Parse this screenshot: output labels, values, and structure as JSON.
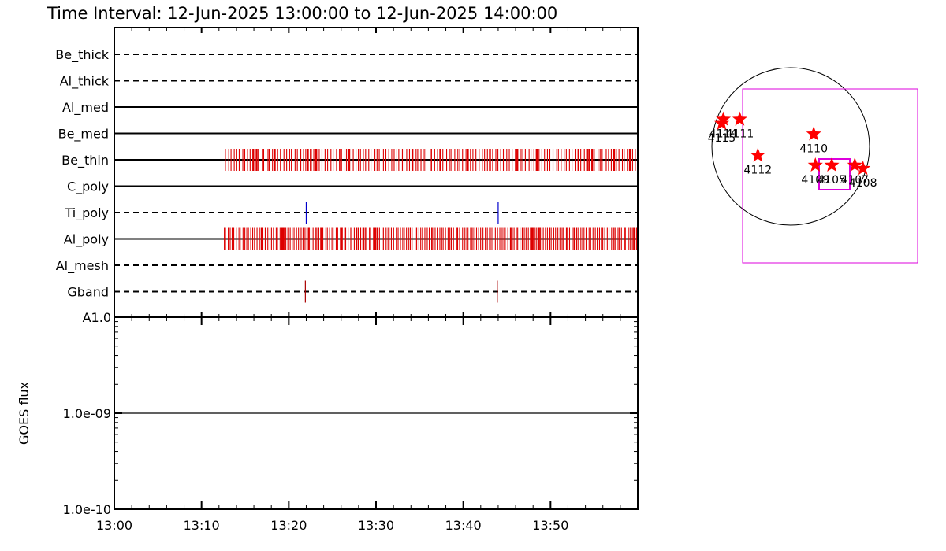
{
  "title": "Time Interval: 12-Jun-2025 13:00:00 to 12-Jun-2025 14:00:00",
  "chart_data": [
    {
      "type": "timeline",
      "x_tick_labels": [
        "13:00",
        "13:10",
        "13:20",
        "13:30",
        "13:40",
        "13:50"
      ],
      "x_ticks_minutes": [
        0,
        10,
        20,
        30,
        40,
        50
      ],
      "x_range_minutes": [
        0,
        60
      ],
      "rows": [
        {
          "name": "Be_thick",
          "style": "dashed",
          "events": []
        },
        {
          "name": "Al_thick",
          "style": "dashed",
          "events": []
        },
        {
          "name": "Al_med",
          "style": "solid",
          "events": []
        },
        {
          "name": "Be_med",
          "style": "solid",
          "events": []
        },
        {
          "name": "Be_thin",
          "style": "solid",
          "events": [],
          "dense_range": [
            12.7,
            60
          ],
          "dense_count": 150,
          "color": "#dd0000"
        },
        {
          "name": "C_poly",
          "style": "solid",
          "events": []
        },
        {
          "name": "Ti_poly",
          "style": "dashed",
          "events": [
            22.0,
            44.0
          ],
          "color": "#0000cc"
        },
        {
          "name": "Al_poly",
          "style": "solid",
          "events": [],
          "dense_range": [
            12.5,
            60
          ],
          "dense_count": 200,
          "color": "#dd0000"
        },
        {
          "name": "Al_mesh",
          "style": "dashed",
          "events": []
        },
        {
          "name": "Gband",
          "style": "dashed",
          "events": [
            21.9,
            43.9
          ],
          "color": "#aa0000"
        }
      ]
    },
    {
      "type": "line",
      "ylabel": "GOES flux",
      "yscale": "log",
      "y_tick_labels": [
        "1.0e-10",
        "1.0e-09",
        "A1.0"
      ],
      "y_tick_values": [
        1e-10,
        1e-09,
        1e-08
      ],
      "ylim": [
        1e-10,
        1e-08
      ],
      "series": [
        {
          "x": [
            0,
            60
          ],
          "y": [
            1e-09,
            1e-09
          ],
          "color": "#000000"
        }
      ]
    },
    {
      "type": "scatter",
      "title": "",
      "points": [
        {
          "label": "4114",
          "x": -820,
          "y": 330
        },
        {
          "label": "4115",
          "x": -840,
          "y": 280
        },
        {
          "label": "4111",
          "x": -620,
          "y": 330
        },
        {
          "label": "4112",
          "x": -400,
          "y": -110
        },
        {
          "label": "4110",
          "x": 280,
          "y": 150
        },
        {
          "label": "4109",
          "x": 300,
          "y": -230
        },
        {
          "label": "4105",
          "x": 500,
          "y": -230
        },
        {
          "label": "4107",
          "x": 780,
          "y": -230
        },
        {
          "label": "4108",
          "x": 880,
          "y": -270
        }
      ],
      "color": "#ff0000",
      "field_box_color": "#dd00dd"
    }
  ]
}
